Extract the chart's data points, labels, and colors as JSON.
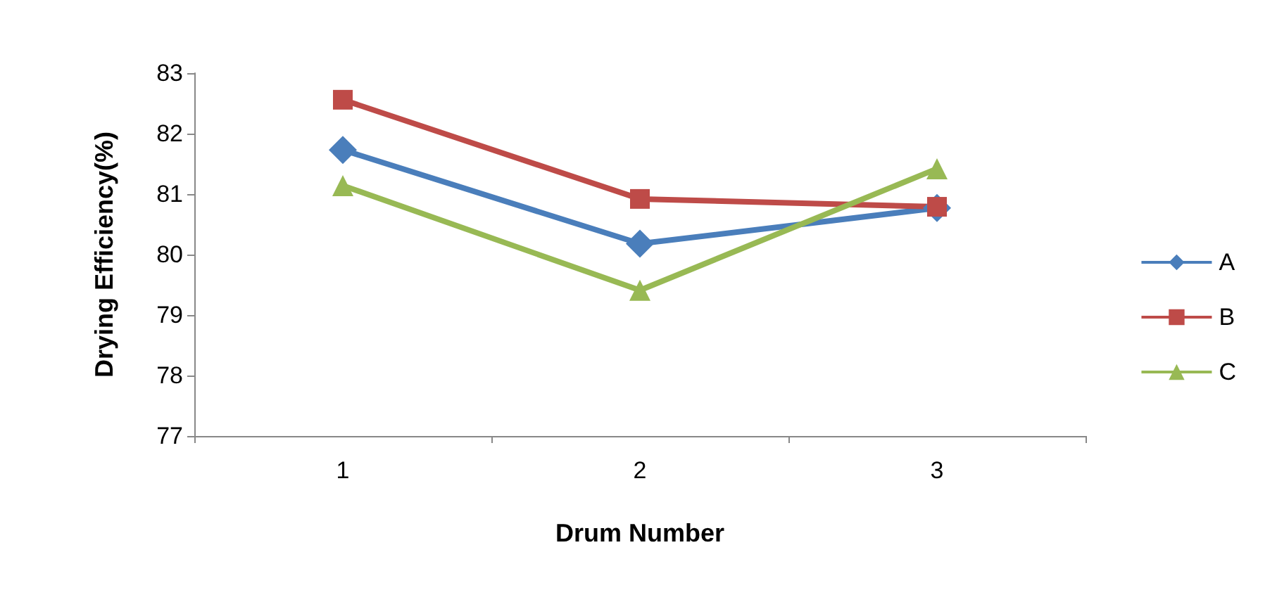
{
  "chart_data": {
    "type": "line",
    "xlabel": "Drum Number",
    "ylabel": "Drying Efficiency(%)",
    "categories": [
      "1",
      "2",
      "3"
    ],
    "series": [
      {
        "name": "A",
        "color": "#4a7ebb",
        "marker": "diamond",
        "values": [
          81.73,
          80.18,
          80.77
        ]
      },
      {
        "name": "B",
        "color": "#be4b48",
        "marker": "square",
        "values": [
          82.56,
          80.92,
          80.79
        ]
      },
      {
        "name": "C",
        "color": "#98b954",
        "marker": "triangle",
        "values": [
          81.14,
          79.41,
          81.42
        ]
      }
    ],
    "ylim": [
      77,
      83
    ],
    "yticks": [
      77,
      78,
      79,
      80,
      81,
      82,
      83
    ],
    "grid": false,
    "legend": "right",
    "line_style": "solid"
  }
}
